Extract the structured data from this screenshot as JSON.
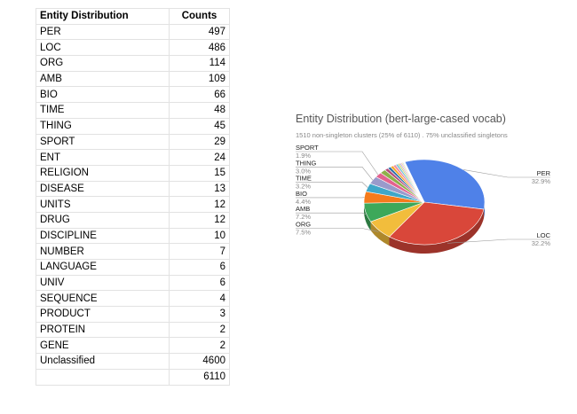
{
  "table": {
    "headers": [
      "Entity Distribution",
      "Counts"
    ],
    "rows": [
      [
        "PER",
        "497"
      ],
      [
        "LOC",
        "486"
      ],
      [
        "ORG",
        "114"
      ],
      [
        "AMB",
        "109"
      ],
      [
        "BIO",
        "66"
      ],
      [
        "TIME",
        "48"
      ],
      [
        "THING",
        "45"
      ],
      [
        "SPORT",
        "29"
      ],
      [
        "ENT",
        "24"
      ],
      [
        "RELIGION",
        "15"
      ],
      [
        "DISEASE",
        "13"
      ],
      [
        "UNITS",
        "12"
      ],
      [
        "DRUG",
        "12"
      ],
      [
        "DISCIPLINE",
        "10"
      ],
      [
        "NUMBER",
        "7"
      ],
      [
        "LANGUAGE",
        "6"
      ],
      [
        "UNIV",
        "6"
      ],
      [
        "SEQUENCE",
        "4"
      ],
      [
        "PRODUCT",
        "3"
      ],
      [
        "PROTEIN",
        "2"
      ],
      [
        "GENE",
        "2"
      ],
      [
        "Unclassified",
        "4600"
      ],
      [
        "",
        "6110"
      ]
    ]
  },
  "chart_data": {
    "type": "pie",
    "title": "Entity Distribution (bert-large-cased vocab)",
    "subtitle": "1510 non-singleton clusters (25% of 6110) . 75% unclassified singletons",
    "three_d": true,
    "slices": [
      {
        "label": "PER",
        "value": 497,
        "pct": "32.9%",
        "color": "#4f81e8",
        "labeled": true
      },
      {
        "label": "LOC",
        "value": 486,
        "pct": "32.2%",
        "color": "#d9473a",
        "labeled": true
      },
      {
        "label": "ORG",
        "value": 114,
        "pct": "7.5%",
        "color": "#f2bd3c",
        "labeled": true
      },
      {
        "label": "AMB",
        "value": 109,
        "pct": "7.2%",
        "color": "#3da85a",
        "labeled": true
      },
      {
        "label": "BIO",
        "value": 66,
        "pct": "4.4%",
        "color": "#f57b1c",
        "labeled": true
      },
      {
        "label": "TIME",
        "value": 48,
        "pct": "3.2%",
        "color": "#3fa7c9",
        "labeled": true
      },
      {
        "label": "THING",
        "value": 45,
        "pct": "3.0%",
        "color": "#9a9acb",
        "labeled": true
      },
      {
        "label": "SPORT",
        "value": 29,
        "pct": "1.9%",
        "color": "#e3628f",
        "labeled": true
      },
      {
        "label": "ENT",
        "value": 24,
        "pct": "",
        "color": "#8fb04a",
        "labeled": false
      },
      {
        "label": "RELIGION",
        "value": 15,
        "pct": "",
        "color": "#b54b7a",
        "labeled": false
      },
      {
        "label": "DISEASE",
        "value": 13,
        "pct": "",
        "color": "#2d6fa8",
        "labeled": false
      },
      {
        "label": "UNITS",
        "value": 12,
        "pct": "",
        "color": "#f5a623",
        "labeled": false
      },
      {
        "label": "DRUG",
        "value": 12,
        "pct": "",
        "color": "#f28fa0",
        "labeled": false
      },
      {
        "label": "DISCIPLINE",
        "value": 10,
        "pct": "",
        "color": "#7fc4d8",
        "labeled": false
      },
      {
        "label": "NUMBER",
        "value": 7,
        "pct": "",
        "color": "#c9d86a",
        "labeled": false
      },
      {
        "label": "LANGUAGE",
        "value": 6,
        "pct": "",
        "color": "#b79fdb",
        "labeled": false
      },
      {
        "label": "UNIV",
        "value": 6,
        "pct": "",
        "color": "#f7c9a9",
        "labeled": false
      },
      {
        "label": "SEQUENCE",
        "value": 4,
        "pct": "",
        "color": "#a8d5b5",
        "labeled": false
      },
      {
        "label": "PRODUCT",
        "value": 3,
        "pct": "",
        "color": "#e8b3c7",
        "labeled": false
      },
      {
        "label": "PROTEIN",
        "value": 2,
        "pct": "",
        "color": "#c2c2c2",
        "labeled": false
      },
      {
        "label": "GENE",
        "value": 2,
        "pct": "",
        "color": "#9ecae1",
        "labeled": false
      }
    ]
  }
}
